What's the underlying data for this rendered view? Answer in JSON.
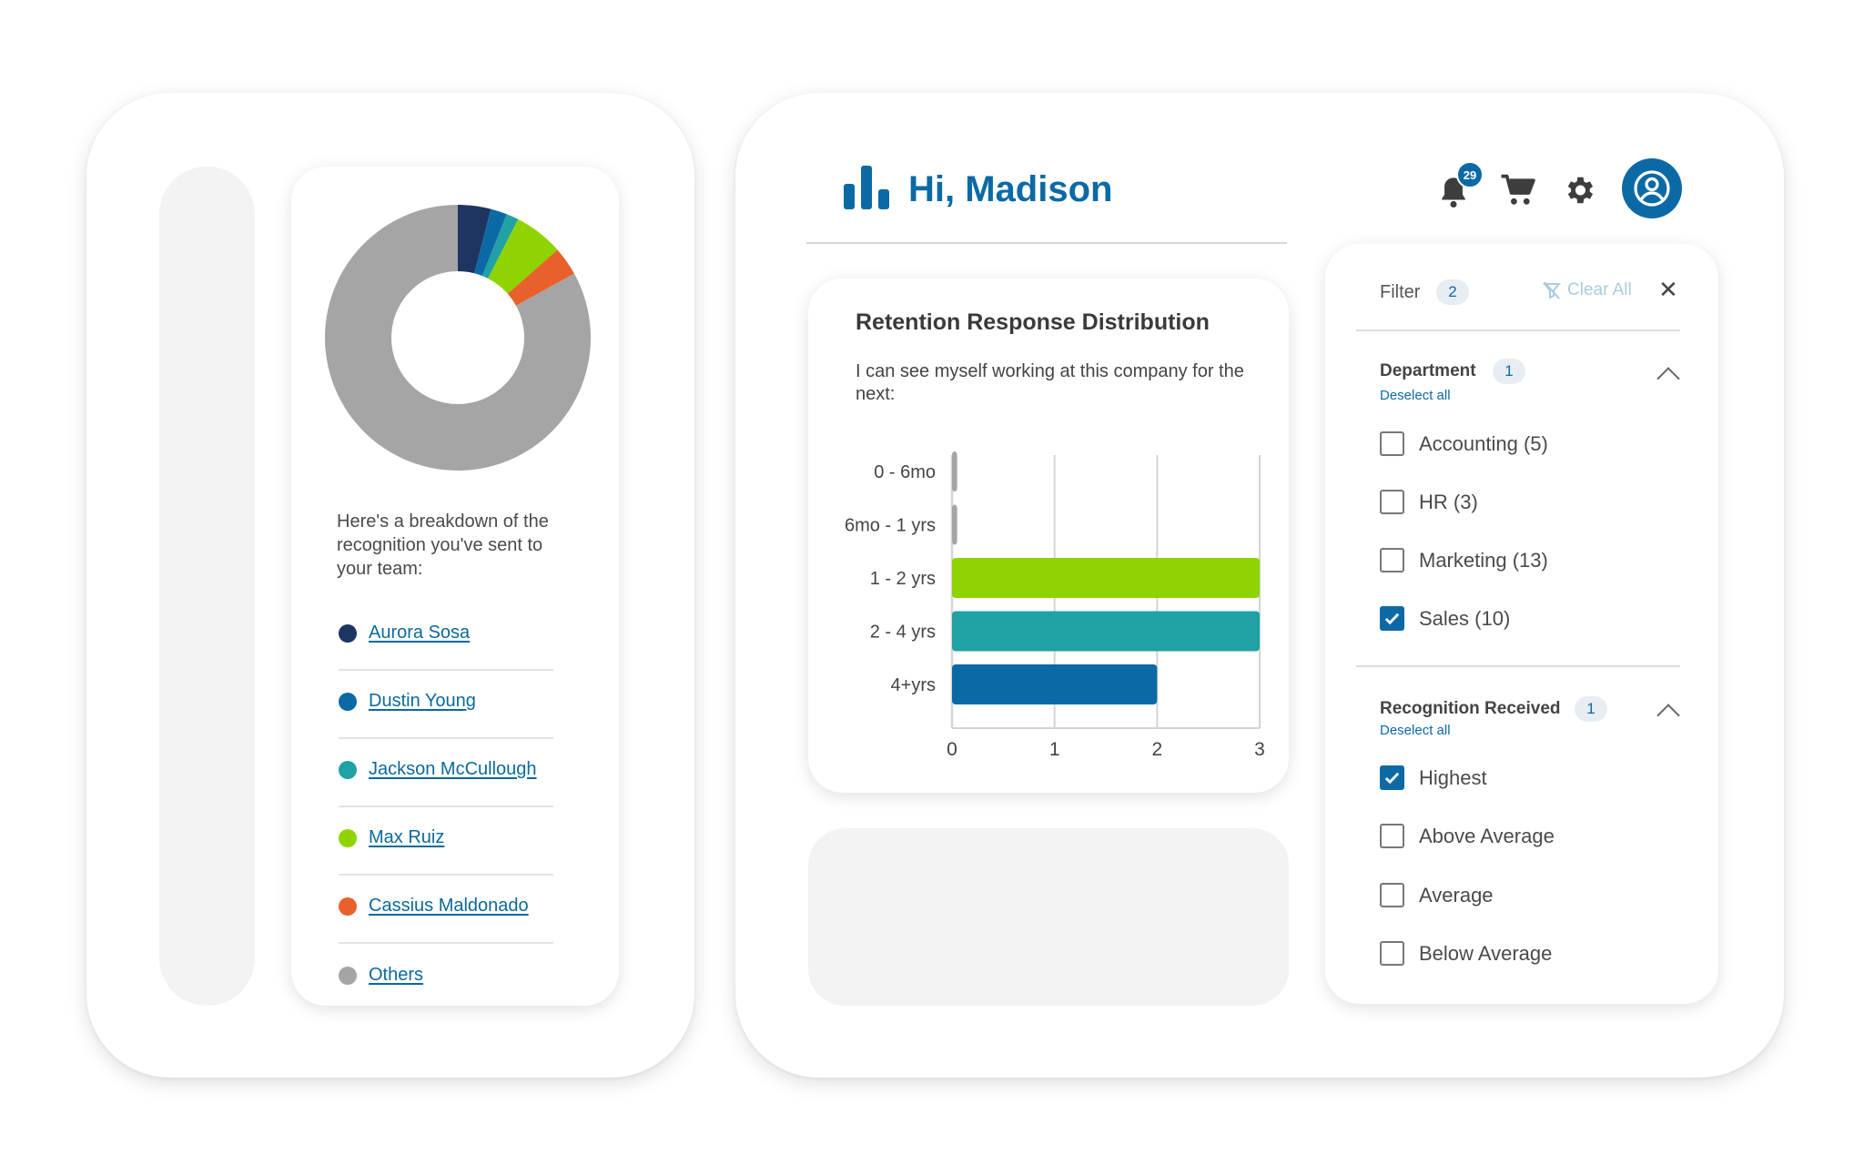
{
  "header": {
    "greeting": "Hi, Madison",
    "notification_count": "29"
  },
  "breakdown": {
    "text": "Here's a breakdown of the recognition you've sent to your team:"
  },
  "donut": {
    "slices": [
      {
        "name": "Aurora Sosa",
        "value": 4,
        "color": "#1e3461"
      },
      {
        "name": "Dustin Young",
        "value": 2,
        "color": "#0b6aa5"
      },
      {
        "name": "Jackson McCullough",
        "value": 1.5,
        "color": "#20a1a6"
      },
      {
        "name": "Max Ruiz",
        "value": 6,
        "color": "#8fd400"
      },
      {
        "name": "Cassius Maldonado",
        "value": 3.5,
        "color": "#e8612a"
      },
      {
        "name": "Others",
        "value": 83,
        "color": "#a5a5a5"
      }
    ]
  },
  "legend": [
    {
      "label": "Aurora Sosa",
      "color": "#1e3461"
    },
    {
      "label": "Dustin Young",
      "color": "#0b6aa5"
    },
    {
      "label": "Jackson McCullough",
      "color": "#20a1a6"
    },
    {
      "label": "Max Ruiz",
      "color": "#8fd400"
    },
    {
      "label": "Cassius Maldonado",
      "color": "#e8612a"
    },
    {
      "label": "Others",
      "color": "#a5a5a5"
    }
  ],
  "chart_data": {
    "type": "bar",
    "orientation": "horizontal",
    "title": "Retention Response Distribution",
    "subtitle": "I can see myself working at this company for the next:",
    "categories": [
      "0 - 6mo",
      "6mo - 1 yrs",
      "1 - 2 yrs",
      "2 - 4 yrs",
      "4+yrs"
    ],
    "values": [
      0.05,
      0.05,
      3,
      3,
      2
    ],
    "colors": [
      "#a5a5a5",
      "#a5a5a5",
      "#8fd400",
      "#20a1a6",
      "#0b6aa5"
    ],
    "x_ticks": [
      "0",
      "1",
      "2",
      "3"
    ],
    "xlim": [
      0,
      3
    ],
    "grid": true
  },
  "filter": {
    "label": "Filter",
    "count": "2",
    "clear_all": "Clear All",
    "sections": [
      {
        "title": "Department",
        "count": "1",
        "deselect": "Deselect all",
        "options": [
          {
            "label": "Accounting (5)",
            "checked": false
          },
          {
            "label": "HR (3)",
            "checked": false
          },
          {
            "label": "Marketing (13)",
            "checked": false
          },
          {
            "label": "Sales (10)",
            "checked": true
          }
        ]
      },
      {
        "title": "Recognition Received",
        "count": "1",
        "deselect": "Deselect all",
        "options": [
          {
            "label": "Highest",
            "checked": true
          },
          {
            "label": "Above Average",
            "checked": false
          },
          {
            "label": "Average",
            "checked": false
          },
          {
            "label": "Below Average",
            "checked": false
          }
        ]
      }
    ]
  }
}
